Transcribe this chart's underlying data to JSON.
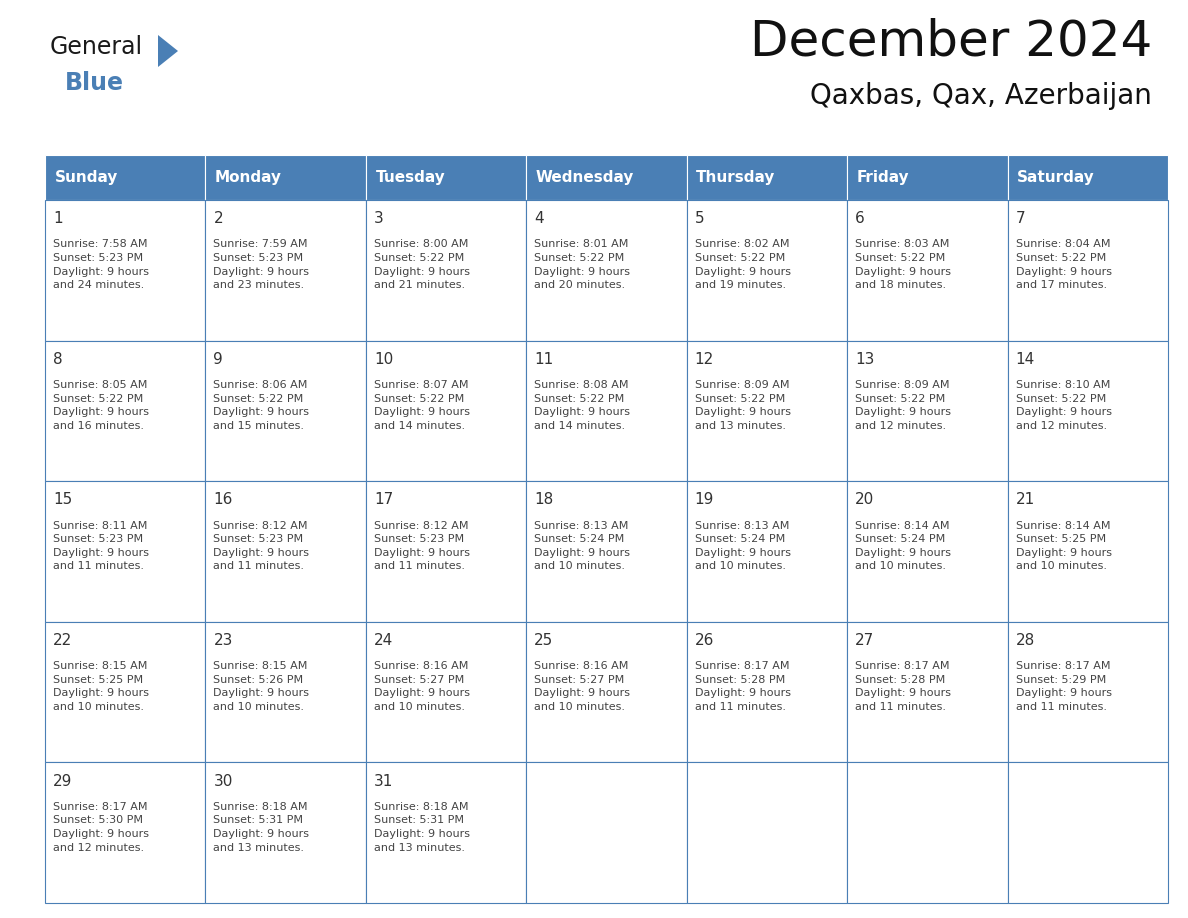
{
  "title": "December 2024",
  "subtitle": "Qaxbas, Qax, Azerbaijan",
  "header_bg": "#4a7fb5",
  "header_text": "#ffffff",
  "cell_border": "#4a7fb5",
  "day_number_color": "#333333",
  "cell_text_color": "#444444",
  "weekdays": [
    "Sunday",
    "Monday",
    "Tuesday",
    "Wednesday",
    "Thursday",
    "Friday",
    "Saturday"
  ],
  "weeks": [
    [
      {
        "day": 1,
        "sunrise": "7:58 AM",
        "sunset": "5:23 PM",
        "daylight": "9 hours\nand 24 minutes."
      },
      {
        "day": 2,
        "sunrise": "7:59 AM",
        "sunset": "5:23 PM",
        "daylight": "9 hours\nand 23 minutes."
      },
      {
        "day": 3,
        "sunrise": "8:00 AM",
        "sunset": "5:22 PM",
        "daylight": "9 hours\nand 21 minutes."
      },
      {
        "day": 4,
        "sunrise": "8:01 AM",
        "sunset": "5:22 PM",
        "daylight": "9 hours\nand 20 minutes."
      },
      {
        "day": 5,
        "sunrise": "8:02 AM",
        "sunset": "5:22 PM",
        "daylight": "9 hours\nand 19 minutes."
      },
      {
        "day": 6,
        "sunrise": "8:03 AM",
        "sunset": "5:22 PM",
        "daylight": "9 hours\nand 18 minutes."
      },
      {
        "day": 7,
        "sunrise": "8:04 AM",
        "sunset": "5:22 PM",
        "daylight": "9 hours\nand 17 minutes."
      }
    ],
    [
      {
        "day": 8,
        "sunrise": "8:05 AM",
        "sunset": "5:22 PM",
        "daylight": "9 hours\nand 16 minutes."
      },
      {
        "day": 9,
        "sunrise": "8:06 AM",
        "sunset": "5:22 PM",
        "daylight": "9 hours\nand 15 minutes."
      },
      {
        "day": 10,
        "sunrise": "8:07 AM",
        "sunset": "5:22 PM",
        "daylight": "9 hours\nand 14 minutes."
      },
      {
        "day": 11,
        "sunrise": "8:08 AM",
        "sunset": "5:22 PM",
        "daylight": "9 hours\nand 14 minutes."
      },
      {
        "day": 12,
        "sunrise": "8:09 AM",
        "sunset": "5:22 PM",
        "daylight": "9 hours\nand 13 minutes."
      },
      {
        "day": 13,
        "sunrise": "8:09 AM",
        "sunset": "5:22 PM",
        "daylight": "9 hours\nand 12 minutes."
      },
      {
        "day": 14,
        "sunrise": "8:10 AM",
        "sunset": "5:22 PM",
        "daylight": "9 hours\nand 12 minutes."
      }
    ],
    [
      {
        "day": 15,
        "sunrise": "8:11 AM",
        "sunset": "5:23 PM",
        "daylight": "9 hours\nand 11 minutes."
      },
      {
        "day": 16,
        "sunrise": "8:12 AM",
        "sunset": "5:23 PM",
        "daylight": "9 hours\nand 11 minutes."
      },
      {
        "day": 17,
        "sunrise": "8:12 AM",
        "sunset": "5:23 PM",
        "daylight": "9 hours\nand 11 minutes."
      },
      {
        "day": 18,
        "sunrise": "8:13 AM",
        "sunset": "5:24 PM",
        "daylight": "9 hours\nand 10 minutes."
      },
      {
        "day": 19,
        "sunrise": "8:13 AM",
        "sunset": "5:24 PM",
        "daylight": "9 hours\nand 10 minutes."
      },
      {
        "day": 20,
        "sunrise": "8:14 AM",
        "sunset": "5:24 PM",
        "daylight": "9 hours\nand 10 minutes."
      },
      {
        "day": 21,
        "sunrise": "8:14 AM",
        "sunset": "5:25 PM",
        "daylight": "9 hours\nand 10 minutes."
      }
    ],
    [
      {
        "day": 22,
        "sunrise": "8:15 AM",
        "sunset": "5:25 PM",
        "daylight": "9 hours\nand 10 minutes."
      },
      {
        "day": 23,
        "sunrise": "8:15 AM",
        "sunset": "5:26 PM",
        "daylight": "9 hours\nand 10 minutes."
      },
      {
        "day": 24,
        "sunrise": "8:16 AM",
        "sunset": "5:27 PM",
        "daylight": "9 hours\nand 10 minutes."
      },
      {
        "day": 25,
        "sunrise": "8:16 AM",
        "sunset": "5:27 PM",
        "daylight": "9 hours\nand 10 minutes."
      },
      {
        "day": 26,
        "sunrise": "8:17 AM",
        "sunset": "5:28 PM",
        "daylight": "9 hours\nand 11 minutes."
      },
      {
        "day": 27,
        "sunrise": "8:17 AM",
        "sunset": "5:28 PM",
        "daylight": "9 hours\nand 11 minutes."
      },
      {
        "day": 28,
        "sunrise": "8:17 AM",
        "sunset": "5:29 PM",
        "daylight": "9 hours\nand 11 minutes."
      }
    ],
    [
      {
        "day": 29,
        "sunrise": "8:17 AM",
        "sunset": "5:30 PM",
        "daylight": "9 hours\nand 12 minutes."
      },
      {
        "day": 30,
        "sunrise": "8:18 AM",
        "sunset": "5:31 PM",
        "daylight": "9 hours\nand 13 minutes."
      },
      {
        "day": 31,
        "sunrise": "8:18 AM",
        "sunset": "5:31 PM",
        "daylight": "9 hours\nand 13 minutes."
      },
      null,
      null,
      null,
      null
    ]
  ],
  "logo_general_color": "#1a1a1a",
  "logo_blue_color": "#4a7fb5",
  "fig_width": 11.88,
  "fig_height": 9.18,
  "title_fontsize": 36,
  "subtitle_fontsize": 20,
  "header_fontsize": 11,
  "day_num_fontsize": 11,
  "cell_text_fontsize": 8
}
